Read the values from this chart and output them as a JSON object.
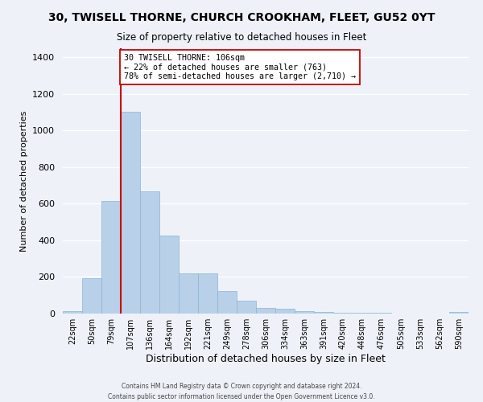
{
  "title": "30, TWISELL THORNE, CHURCH CROOKHAM, FLEET, GU52 0YT",
  "subtitle": "Size of property relative to detached houses in Fleet",
  "xlabel": "Distribution of detached houses by size in Fleet",
  "ylabel": "Number of detached properties",
  "bar_color": "#b8d0e8",
  "bar_edge_color": "#8ab4d4",
  "background_color": "#eef2f8",
  "grid_color": "#ffffff",
  "bin_labels": [
    "22sqm",
    "50sqm",
    "79sqm",
    "107sqm",
    "136sqm",
    "164sqm",
    "192sqm",
    "221sqm",
    "249sqm",
    "278sqm",
    "306sqm",
    "334sqm",
    "363sqm",
    "391sqm",
    "420sqm",
    "448sqm",
    "476sqm",
    "505sqm",
    "533sqm",
    "562sqm",
    "590sqm"
  ],
  "bar_values": [
    15,
    195,
    615,
    1105,
    670,
    425,
    220,
    220,
    125,
    70,
    30,
    25,
    15,
    10,
    5,
    5,
    3,
    0,
    0,
    0,
    10
  ],
  "ylim": [
    0,
    1450
  ],
  "yticks": [
    0,
    200,
    400,
    600,
    800,
    1000,
    1200,
    1400
  ],
  "marker_bar_index": 3,
  "marker_label_line1": "30 TWISELL THORNE: 106sqm",
  "marker_label_line2": "← 22% of detached houses are smaller (763)",
  "marker_label_line3": "78% of semi-detached houses are larger (2,710) →",
  "marker_color": "#cc0000",
  "annotation_box_color": "#ffffff",
  "annotation_box_edge": "#cc0000",
  "footer_line1": "Contains HM Land Registry data © Crown copyright and database right 2024.",
  "footer_line2": "Contains public sector information licensed under the Open Government Licence v3.0."
}
